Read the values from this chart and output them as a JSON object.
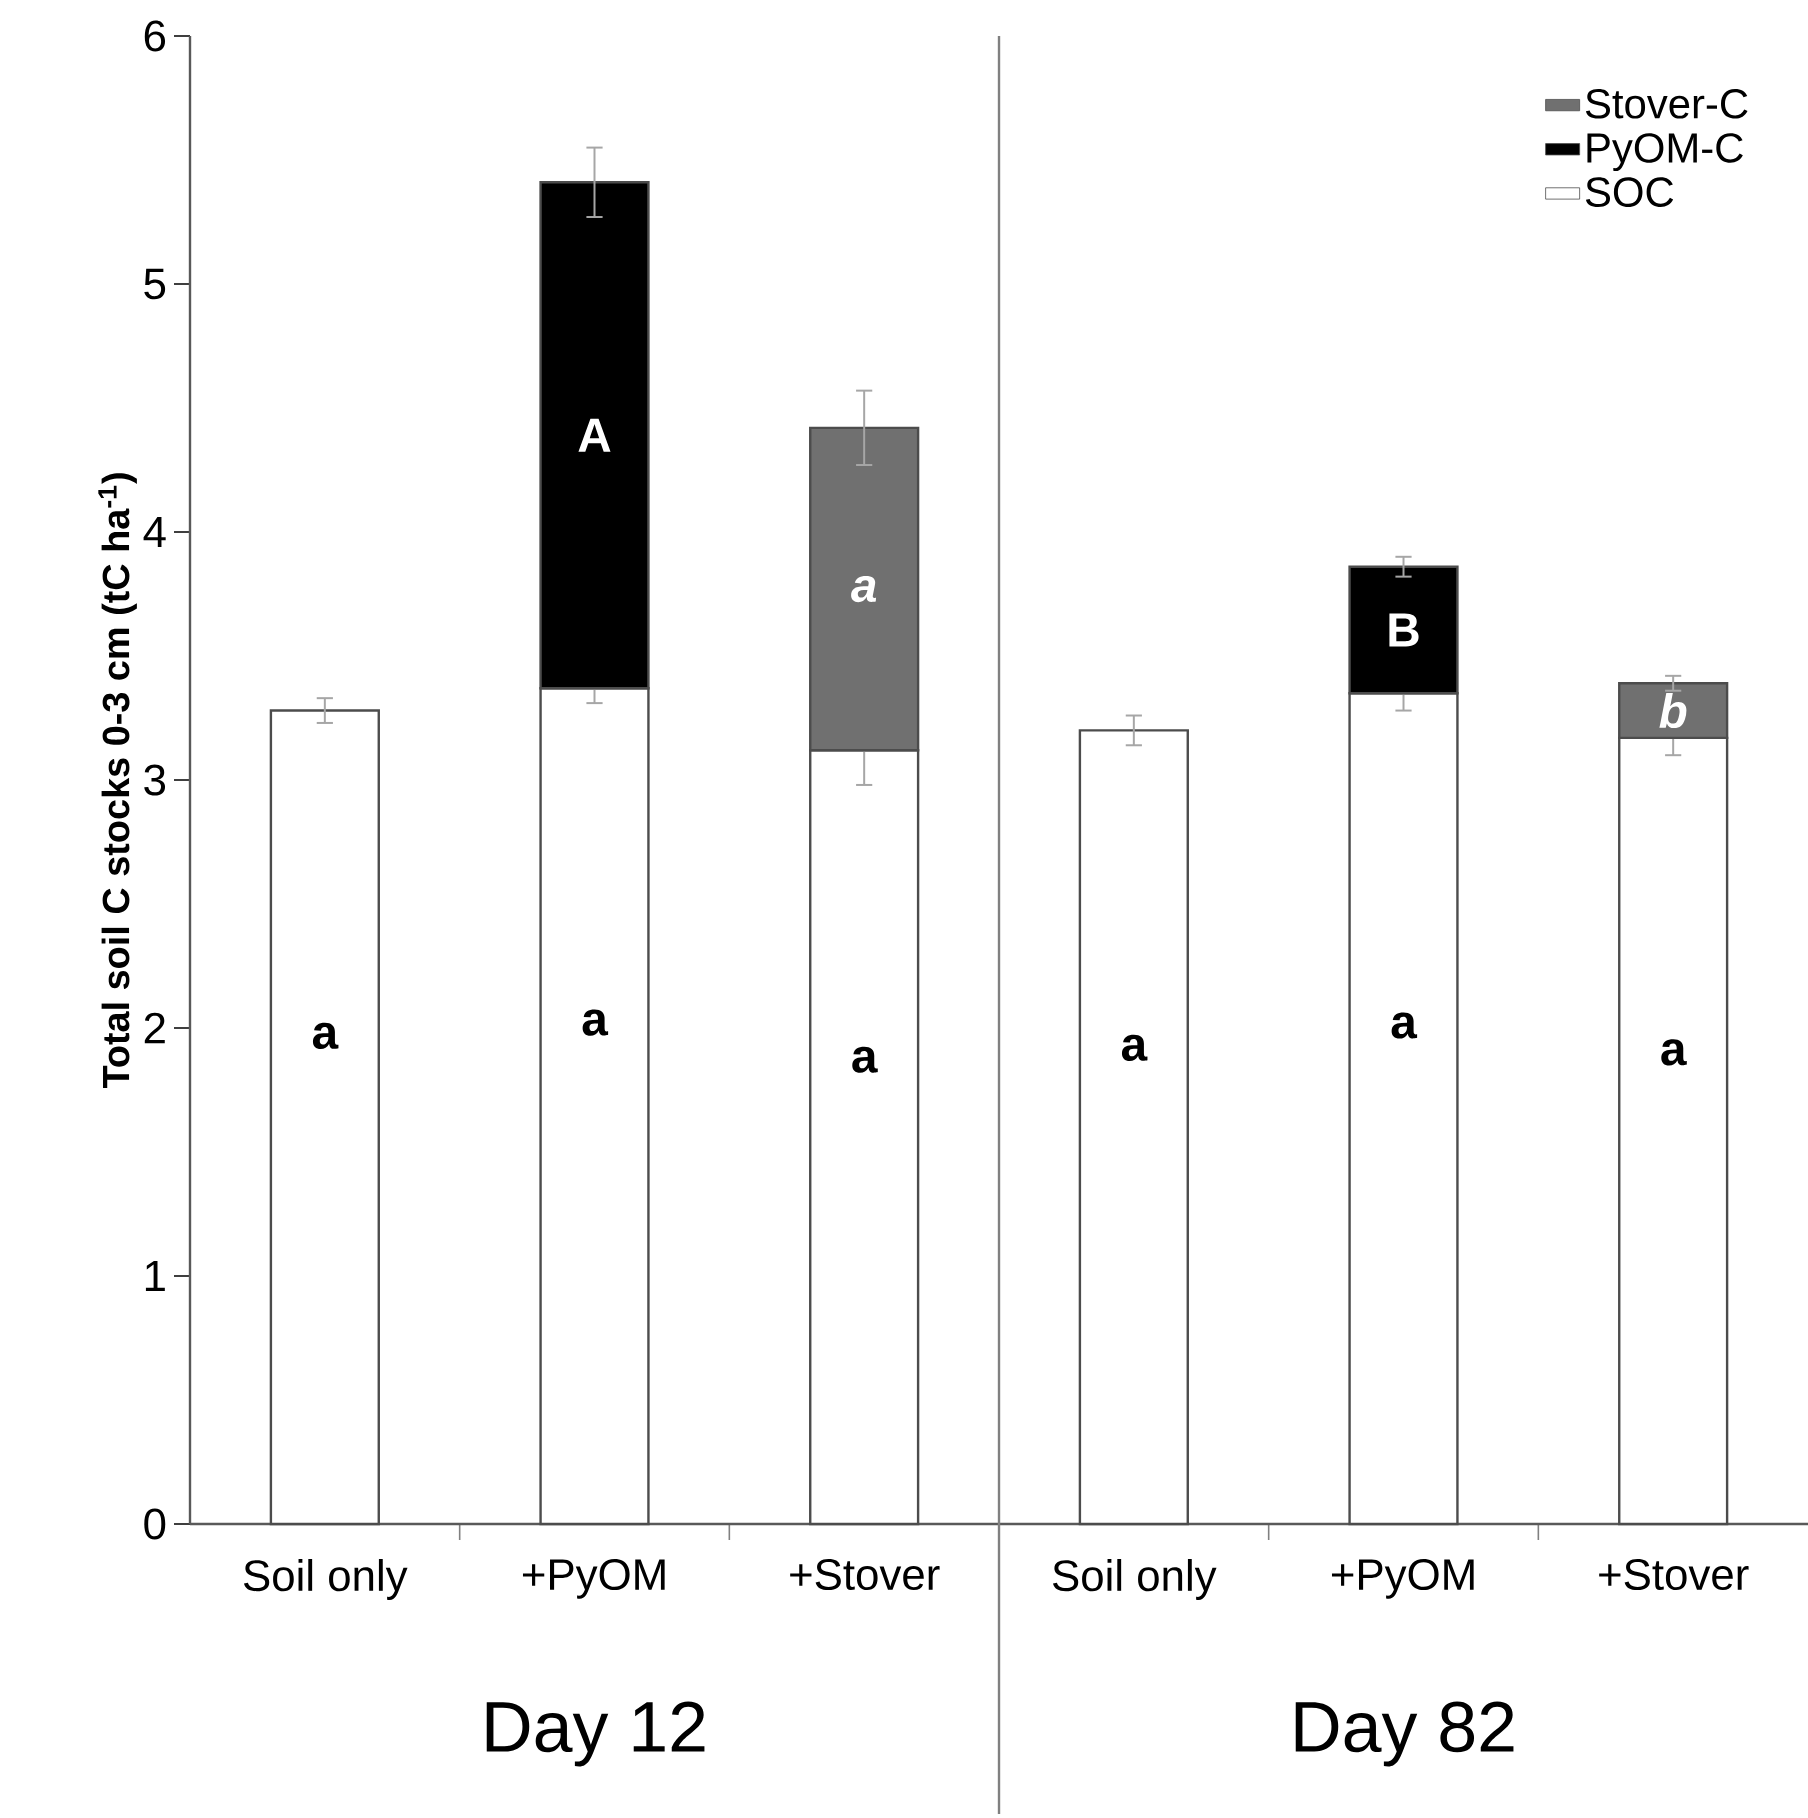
{
  "chart_data": {
    "type": "bar",
    "stacked": true,
    "ylabel": "Total soil C stocks 0-3 cm (tC ha$^{-1}$)",
    "categories": [
      "Soil only",
      "+PyOM",
      "+Stover",
      "Soil only",
      "+PyOM",
      "+Stover"
    ],
    "series": [
      {
        "name": "SOC",
        "color": "#ffffff",
        "values": [
          3.28,
          3.37,
          3.12,
          3.2,
          3.35,
          3.17
        ],
        "errors": [
          0.05,
          0.06,
          0.14,
          0.06,
          0.07,
          0.07
        ],
        "value_labels": [
          "a",
          "a",
          "a",
          "a",
          "a",
          "a"
        ]
      },
      {
        "name": "PyOM-C",
        "color": "#000000",
        "values": [
          null,
          2.04,
          null,
          null,
          0.51,
          null
        ],
        "errors": [
          null,
          0.14,
          null,
          null,
          0.04,
          null
        ],
        "value_labels": [
          null,
          "A",
          null,
          null,
          "B",
          null
        ]
      },
      {
        "name": "Stover-C",
        "color": "#707070",
        "values": [
          null,
          null,
          1.3,
          null,
          null,
          0.22
        ],
        "errors": [
          null,
          null,
          0.15,
          null,
          null,
          0.03
        ],
        "value_labels": [
          null,
          null,
          "*a*",
          null,
          null,
          "*b*"
        ]
      }
    ],
    "ylim": [
      0,
      6
    ],
    "yticks": [
      0,
      1,
      2,
      3,
      4,
      5,
      6
    ],
    "annotations": [
      "Day 12",
      "Day 82"
    ],
    "legend": "top right",
    "grid": false
  }
}
